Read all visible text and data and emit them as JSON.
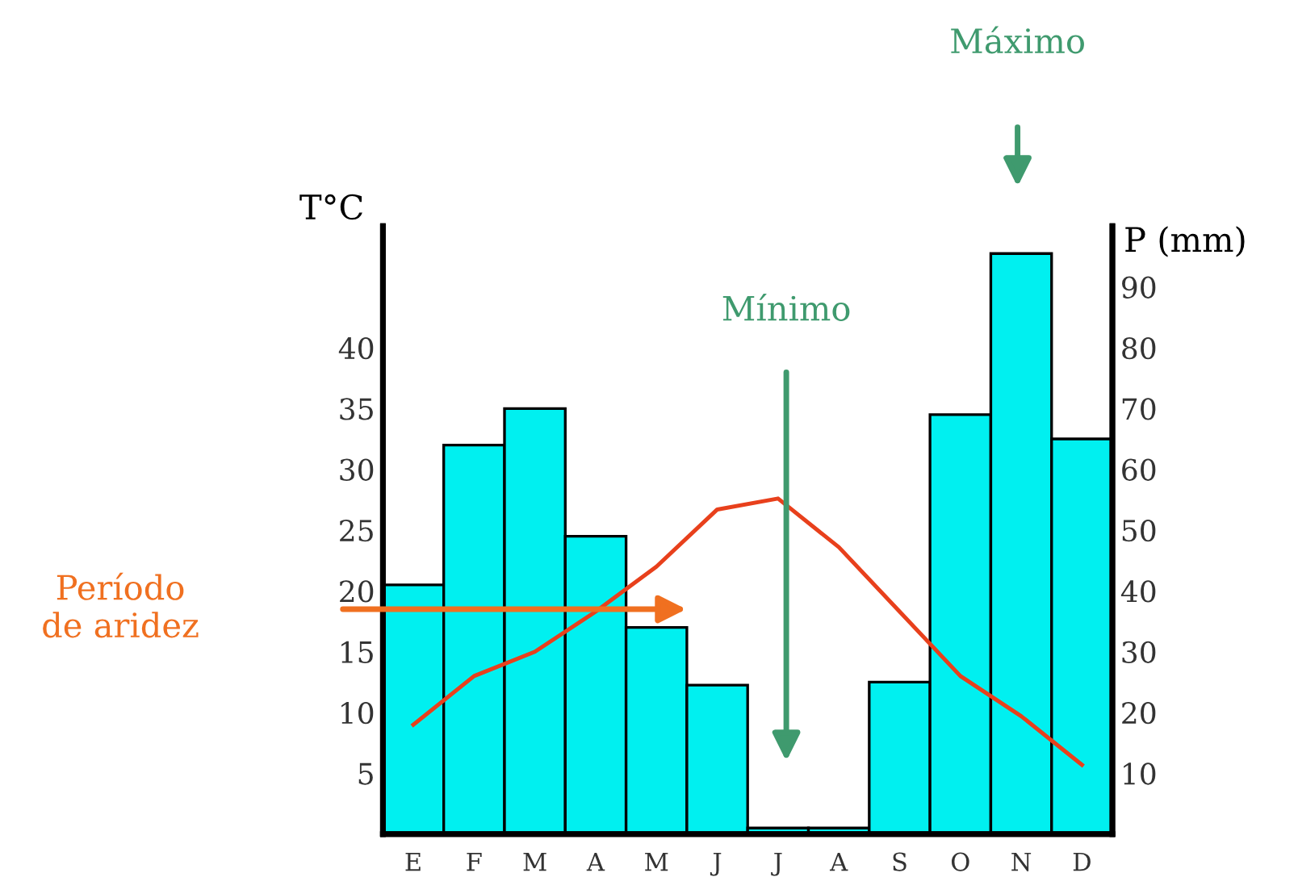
{
  "chart_data": {
    "type": "bar",
    "categories": [
      "E",
      "F",
      "M",
      "A",
      "M",
      "J",
      "J",
      "A",
      "S",
      "O",
      "N",
      "D"
    ],
    "series": [
      {
        "axis": "y2",
        "color": "#00f0f0",
        "values": [
          41,
          64,
          70,
          49,
          34,
          24.5,
          1,
          1,
          25,
          69,
          95.5,
          65
        ]
      },
      {
        "type": "line",
        "axis": "y",
        "color": "#e8401c",
        "values": [
          9,
          13,
          15,
          18.3,
          22,
          26.7,
          27.6,
          23.6,
          18.3,
          13,
          9.7,
          5.7
        ]
      }
    ],
    "ylabel": "T°C",
    "y2label": "P (mm)",
    "ylim": [
      0,
      50
    ],
    "yticks": [
      5,
      10,
      15,
      20,
      25,
      30,
      35,
      40
    ],
    "y2lim": [
      0,
      100
    ],
    "y2ticks": [
      10,
      20,
      30,
      40,
      50,
      60,
      70,
      80,
      90
    ],
    "annotations": [
      "Máximo",
      "Mínimo",
      "Período\nde aridez"
    ],
    "grid": false,
    "marker": "none",
    "line_style": "solid"
  }
}
